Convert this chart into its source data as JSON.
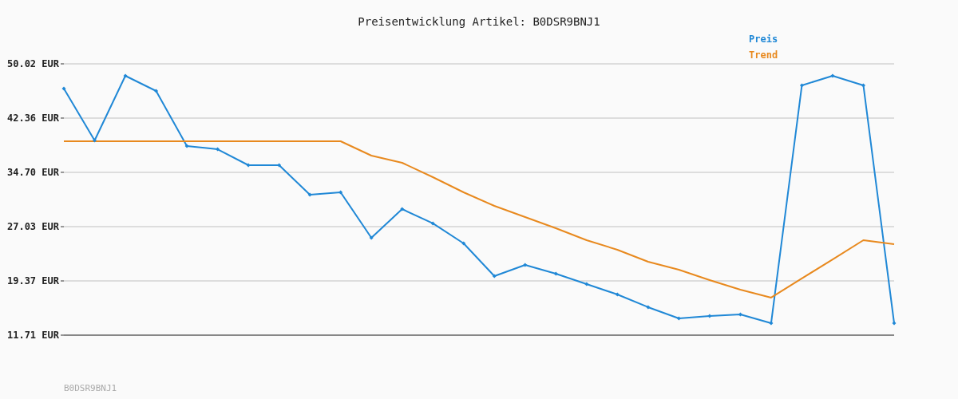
{
  "chart_data": {
    "type": "line",
    "title": "Preisentwicklung Artikel: B0DSR9BNJ1",
    "categories": [
      null,
      null,
      null,
      null,
      null,
      null,
      null,
      null,
      null,
      null,
      null,
      null,
      null,
      null,
      null,
      null,
      null,
      null,
      null,
      null,
      null,
      null,
      null,
      null,
      null,
      null,
      null,
      null
    ],
    "series": [
      {
        "name": "Preis",
        "color": "#2088d6",
        "marker": "diamond",
        "values": [
          46.53,
          39.2,
          48.33,
          46.19,
          38.41,
          37.96,
          35.71,
          35.71,
          31.54,
          31.88,
          25.46,
          29.51,
          27.49,
          24.67,
          20.05,
          21.63,
          20.39,
          18.92,
          17.46,
          15.66,
          14.08,
          14.41,
          14.64,
          13.4,
          46.98,
          48.33,
          46.98,
          13.4
        ]
      },
      {
        "name": "Trend",
        "color": "#e8891e",
        "marker": "none",
        "values": [
          39.09,
          39.09,
          39.09,
          39.09,
          39.09,
          39.09,
          39.09,
          39.09,
          39.09,
          39.09,
          37.06,
          36.05,
          34.02,
          31.88,
          29.96,
          28.39,
          26.81,
          25.12,
          23.77,
          22.08,
          20.95,
          19.49,
          18.13,
          17.01,
          19.72,
          22.41,
          25.12,
          24.55
        ]
      }
    ],
    "ylim": [
      11.71,
      50.02
    ],
    "yticks": [
      {
        "value": 11.71,
        "label": "11.71 EUR"
      },
      {
        "value": 19.37,
        "label": "19.37 EUR"
      },
      {
        "value": 27.03,
        "label": "27.03 EUR"
      },
      {
        "value": 34.7,
        "label": "34.70 EUR"
      },
      {
        "value": 42.36,
        "label": "42.36 EUR"
      },
      {
        "value": 50.02,
        "label": "50.02 EUR"
      }
    ],
    "grid": "y",
    "legend": "top right",
    "annotations": [
      "B0DSR9BNJ1"
    ]
  }
}
